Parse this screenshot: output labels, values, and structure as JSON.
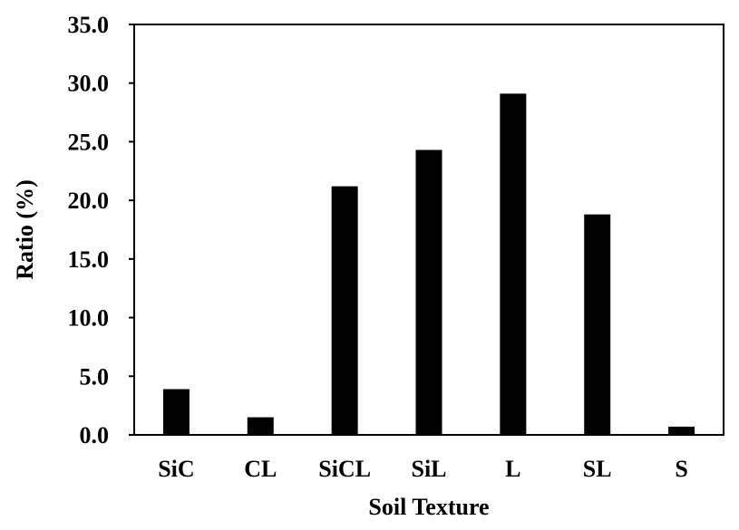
{
  "chart_data": {
    "type": "bar",
    "categories": [
      "SiC",
      "CL",
      "SiCL",
      "SiL",
      "L",
      "SL",
      "S"
    ],
    "values": [
      3.9,
      1.5,
      21.2,
      24.3,
      29.1,
      18.8,
      0.7
    ],
    "title": "",
    "xlabel": "Soil Texture",
    "ylabel": "Ratio (%)",
    "ylim": [
      0,
      35
    ],
    "yticks": [
      "0.0",
      "5.0",
      "10.0",
      "15.0",
      "20.0",
      "25.0",
      "30.0",
      "35.0"
    ],
    "grid": false,
    "legend": "none",
    "bar_color": "#000000",
    "axis_color": "#000000"
  }
}
